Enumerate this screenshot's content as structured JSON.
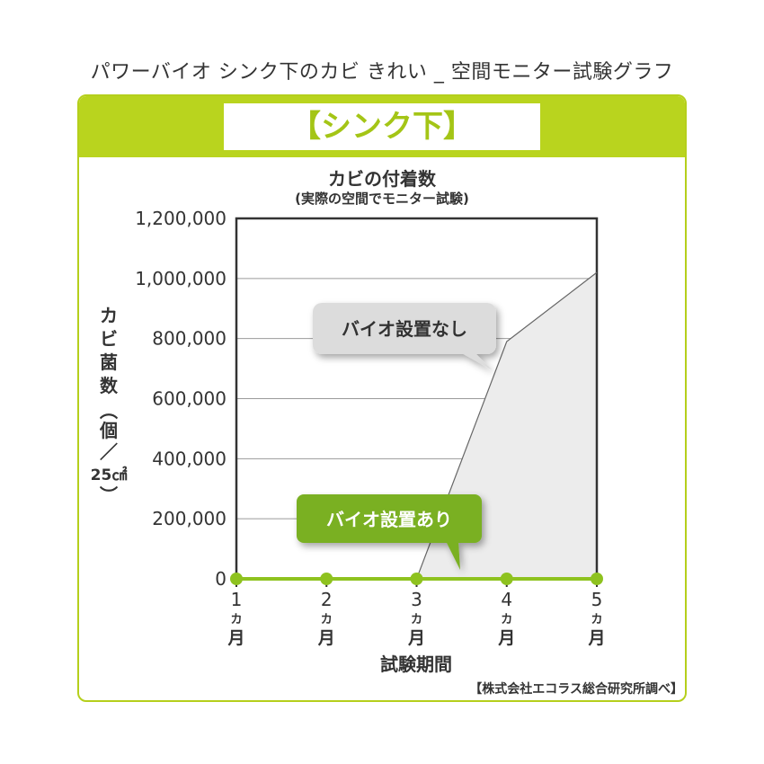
{
  "page": {
    "top_title": "パワーバイオ シンク下のカビ きれい _ 空間モニター試験グラフ",
    "card_header": "【シンク下】",
    "source_note": "【株式会社エコラス総合研究所調べ】"
  },
  "chart_data": {
    "type": "line",
    "title": "カビの付着数",
    "subtitle": "(実際の空間でモニター試験)",
    "xlabel": "試験期間",
    "ylabel_chars": [
      "カ",
      "ビ",
      "菌",
      "数",
      "︵",
      "個",
      "／",
      "25㎠",
      "︶"
    ],
    "x_ticks": [
      {
        "num": "1",
        "unit": "カ",
        "month": "月"
      },
      {
        "num": "2",
        "unit": "カ",
        "month": "月"
      },
      {
        "num": "3",
        "unit": "カ",
        "month": "月"
      },
      {
        "num": "4",
        "unit": "カ",
        "month": "月"
      },
      {
        "num": "5",
        "unit": "カ",
        "month": "月"
      }
    ],
    "x": [
      1,
      2,
      3,
      4,
      5
    ],
    "ylim": [
      0,
      1200000
    ],
    "y_ticks": [
      {
        "value": 0,
        "label": "0"
      },
      {
        "value": 200000,
        "label": "200,000"
      },
      {
        "value": 400000,
        "label": "400,000"
      },
      {
        "value": 600000,
        "label": "600,000"
      },
      {
        "value": 800000,
        "label": "800,000"
      },
      {
        "value": 1000000,
        "label": "1,000,000"
      },
      {
        "value": 1200000,
        "label": "1,200,000"
      }
    ],
    "grid": true,
    "series": [
      {
        "name": "バイオ設置なし",
        "color": "#666666",
        "fill": "#ececec",
        "points": [
          [
            3,
            0
          ],
          [
            4,
            790000
          ],
          [
            5,
            1020000
          ]
        ]
      },
      {
        "name": "バイオ設置あり",
        "color": "#8ec21f",
        "points": [
          [
            1,
            0
          ],
          [
            2,
            0
          ],
          [
            3,
            0
          ],
          [
            4,
            0
          ],
          [
            5,
            0
          ]
        ]
      }
    ]
  }
}
